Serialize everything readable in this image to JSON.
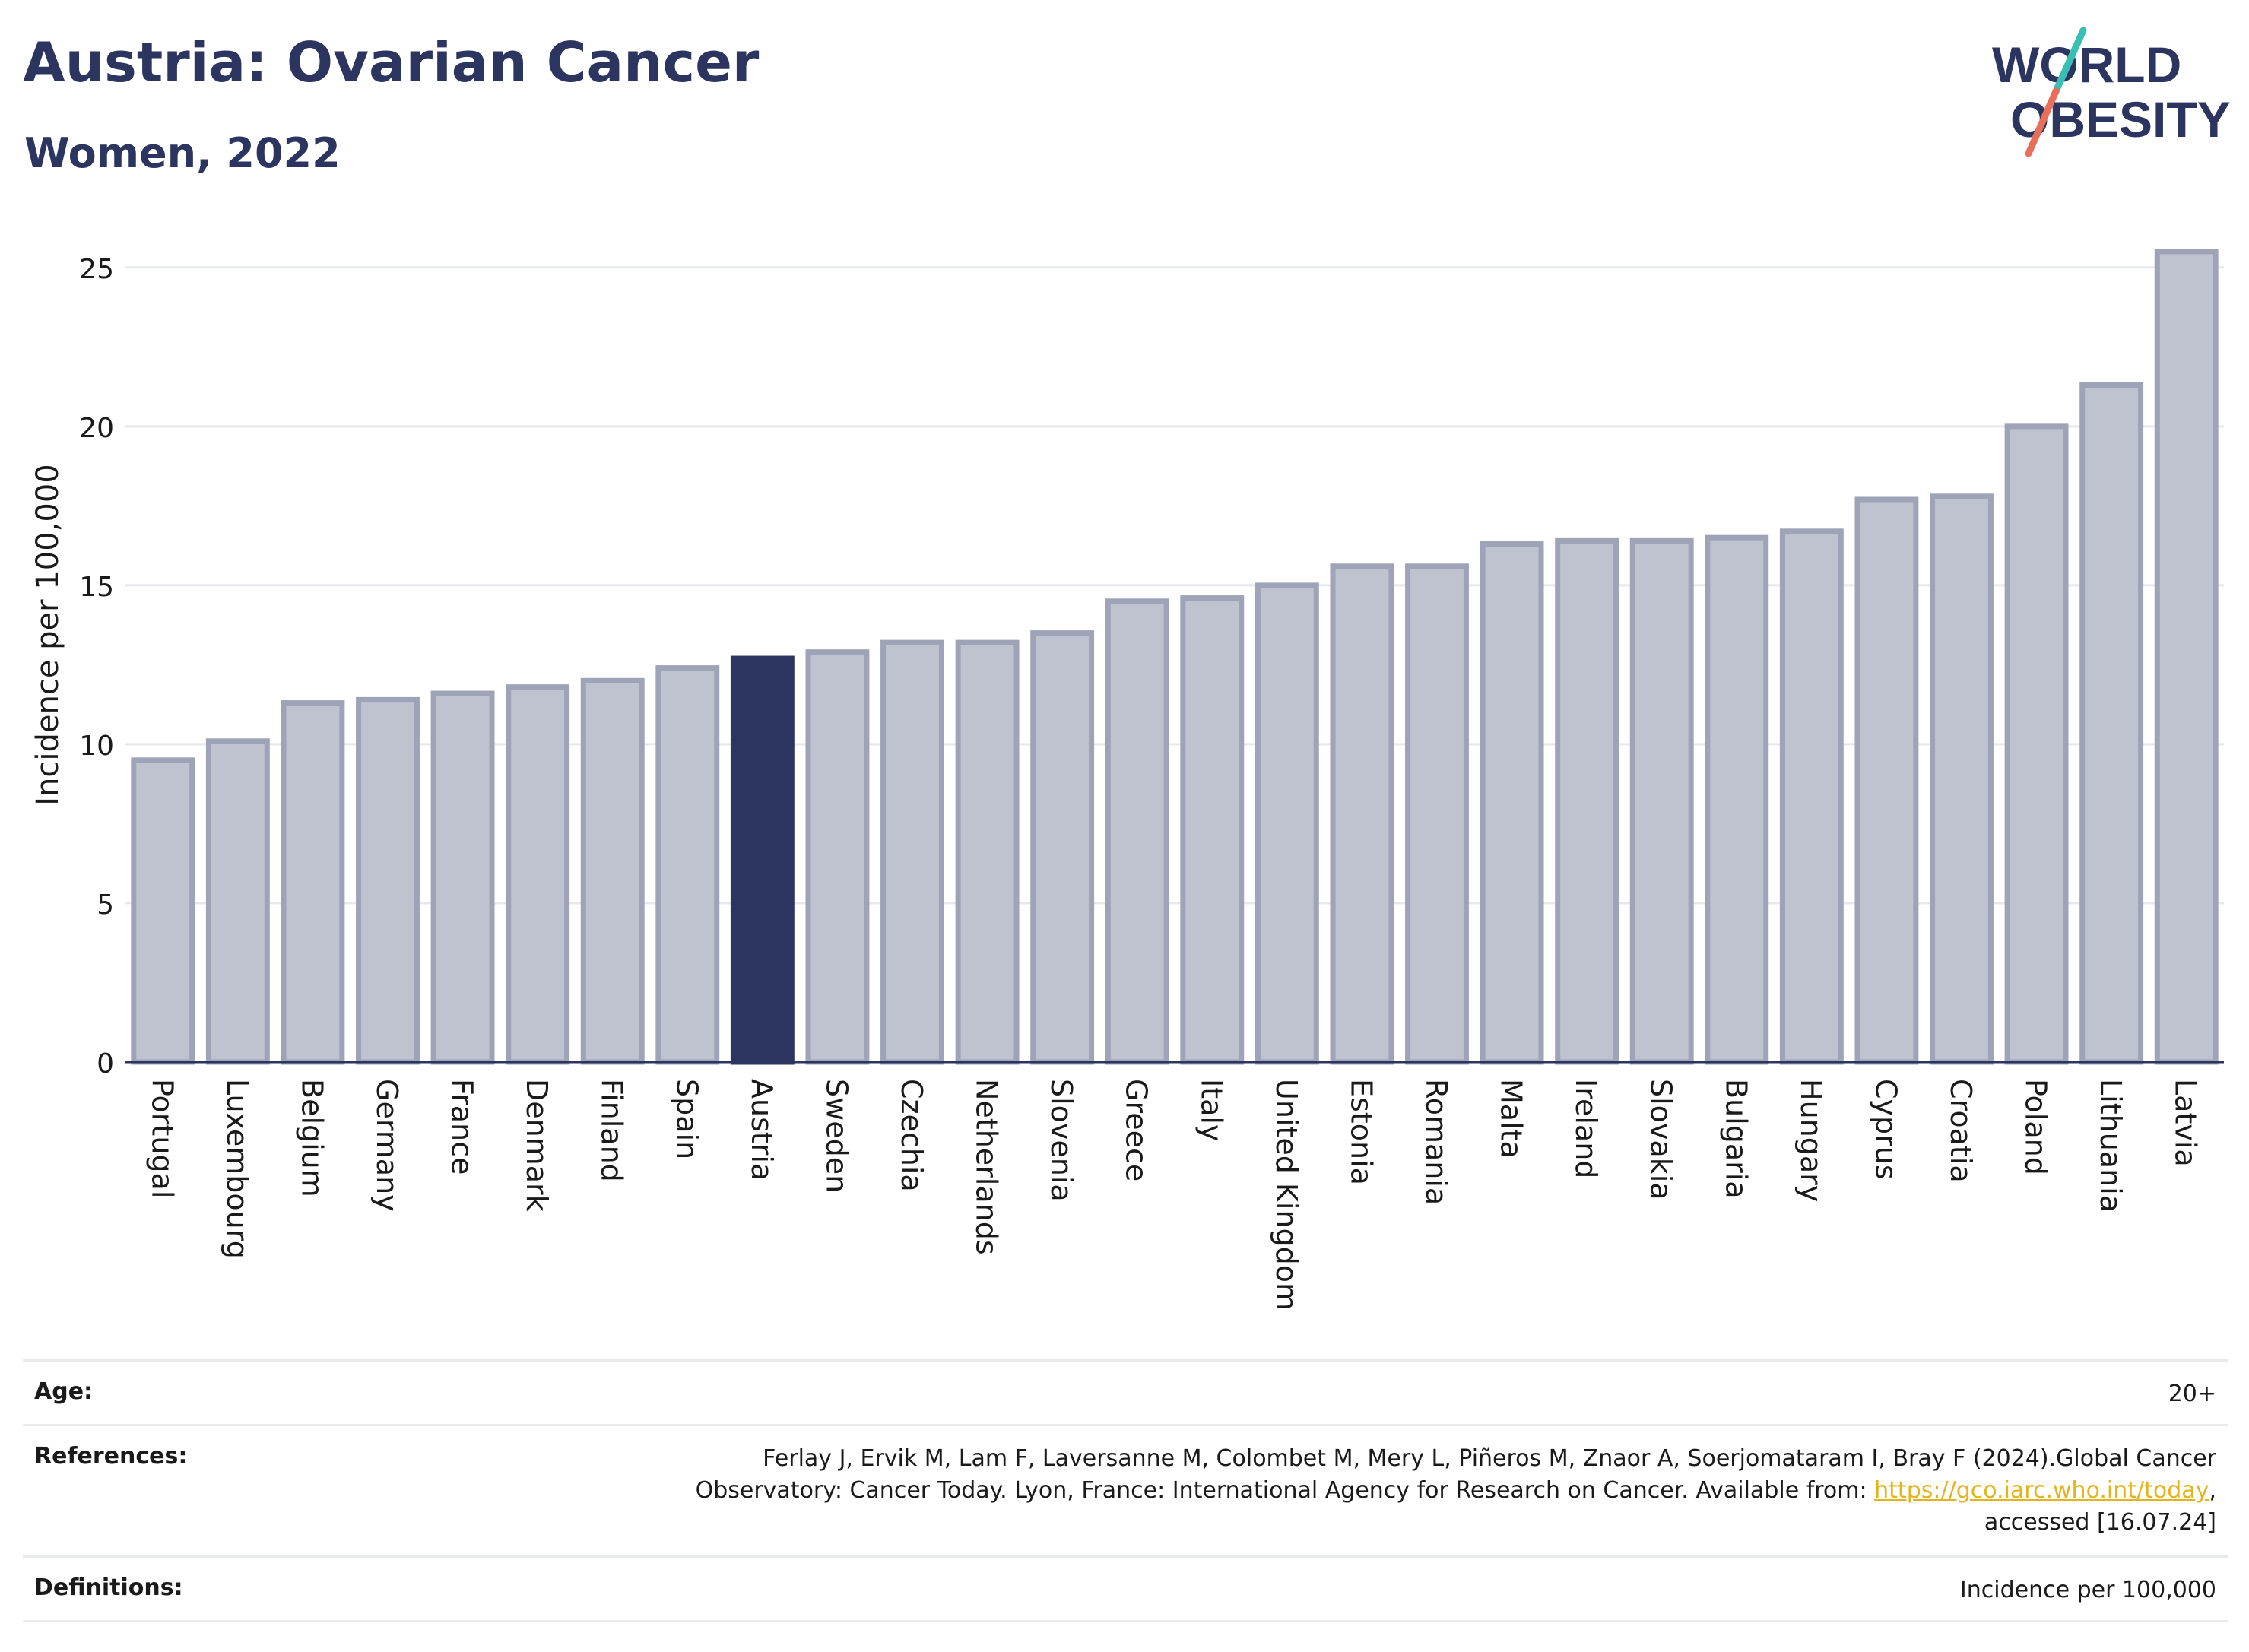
{
  "header": {
    "title": "Austria: Ovarian Cancer",
    "subtitle": "Women, 2022",
    "logo_line1": "WORLD",
    "logo_line2": "OBESITY"
  },
  "colors": {
    "highlight": "#2b3560",
    "bar_fill": "#bfc2cf",
    "bar_stroke": "#9ea3b8",
    "grid": "#e6e8ec",
    "logo_teal": "#3bbfb3",
    "logo_coral": "#e8705a",
    "link": "#e5b31b"
  },
  "chart_data": {
    "type": "bar",
    "ylabel": "Incidence per 100,000",
    "xlabel": "",
    "ylim": [
      0,
      26
    ],
    "yticks": [
      0,
      5,
      10,
      15,
      20,
      25
    ],
    "grid": true,
    "highlight": "Austria",
    "categories": [
      "Portugal",
      "Luxembourg",
      "Belgium",
      "Germany",
      "France",
      "Denmark",
      "Finland",
      "Spain",
      "Austria",
      "Sweden",
      "Czechia",
      "Netherlands",
      "Slovenia",
      "Greece",
      "Italy",
      "United Kingdom",
      "Estonia",
      "Romania",
      "Malta",
      "Ireland",
      "Slovakia",
      "Bulgaria",
      "Hungary",
      "Cyprus",
      "Croatia",
      "Poland",
      "Lithuania",
      "Latvia"
    ],
    "values": [
      9.5,
      10.1,
      11.3,
      11.4,
      11.6,
      11.8,
      12.0,
      12.4,
      12.7,
      12.9,
      13.2,
      13.2,
      13.5,
      14.5,
      14.6,
      15.0,
      15.6,
      15.6,
      16.3,
      16.4,
      16.4,
      16.5,
      16.7,
      17.7,
      17.8,
      20.0,
      21.3,
      25.5
    ]
  },
  "footer": {
    "age_label": "Age:",
    "age_value": "20+",
    "references_label": "References:",
    "references_line1": "Ferlay J, Ervik M, Lam F, Laversanne M, Colombet M, Mery L, Piñeros M, Znaor A, Soerjomataram I, Bray F (2024).Global Cancer",
    "references_line2_pre": "Observatory: Cancer Today. Lyon, France: International Agency for Research on Cancer. Available from: ",
    "references_link": "https://gco.iarc.who.int/today",
    "references_line2_post": ",",
    "references_line3": "accessed [16.07.24]",
    "definitions_label": "Definitions:",
    "definitions_value": "Incidence per 100,000"
  }
}
